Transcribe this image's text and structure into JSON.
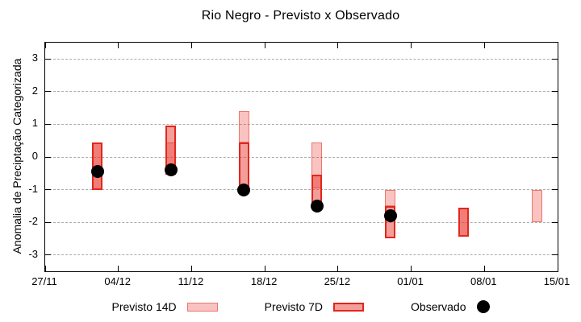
{
  "chart_data": {
    "type": "bar",
    "subtype": "forecast-range-bars-with-observed-points",
    "title": "Rio Negro - Previsto x Observado",
    "xlabel": "",
    "ylabel": "Anomalia de Preciptação Categorizada",
    "x_tick_labels": [
      "27/11",
      "04/12",
      "11/12",
      "18/12",
      "25/12",
      "01/01",
      "08/01",
      "15/01"
    ],
    "x_tick_days": [
      0,
      7,
      14,
      21,
      28,
      35,
      42,
      49
    ],
    "x_range_days": [
      0,
      49
    ],
    "y_ticks": [
      3,
      2,
      1,
      0,
      -1,
      -2,
      -3
    ],
    "ylim": [
      -3.5,
      3.5
    ],
    "grid": "horizontal dashed gridlines at integer y values",
    "legend_position": "bottom-center outside plot",
    "legend": [
      {
        "label": "Previsto 14D",
        "type": "box"
      },
      {
        "label": "Previsto 7D",
        "type": "box"
      },
      {
        "label": "Observado",
        "type": "dot"
      }
    ],
    "series": [
      {
        "date": "02/12",
        "day": 5,
        "previsto_14d": [
          0.45,
          -1.0
        ],
        "previsto_7d": [
          0.45,
          -1.0
        ],
        "observado": -0.45
      },
      {
        "date": "09/12",
        "day": 12,
        "previsto_14d": [
          0.45,
          -0.55
        ],
        "previsto_7d": [
          0.95,
          -0.55
        ],
        "observado": -0.4
      },
      {
        "date": "16/12",
        "day": 19,
        "previsto_14d": [
          1.4,
          0.45
        ],
        "previsto_7d": [
          0.45,
          -1.05
        ],
        "observado": -1.0
      },
      {
        "date": "23/12",
        "day": 26,
        "previsto_14d": [
          0.45,
          -0.95
        ],
        "previsto_7d": [
          -0.55,
          -1.55
        ],
        "observado": -1.5
      },
      {
        "date": "30/12",
        "day": 33,
        "previsto_14d": [
          -1.0,
          -1.5
        ],
        "previsto_7d": [
          -1.5,
          -2.5
        ],
        "observado": -1.8
      },
      {
        "date": "06/01",
        "day": 40,
        "previsto_14d": [
          -1.55,
          -2.45
        ],
        "previsto_7d": [
          -1.55,
          -2.45
        ],
        "observado": null
      },
      {
        "date": "13/01",
        "day": 47,
        "previsto_14d": [
          -1.0,
          -2.0
        ],
        "previsto_7d": null,
        "observado": null
      }
    ]
  },
  "colors": {
    "bar_base_rgb": "230,40,30",
    "previsto_14d_fill_alpha": 0.28,
    "previsto_7d_fill_alpha": 0.45,
    "previsto_14d_border": "rgba(226,48,35,0.52)",
    "previsto_7d_border": "#e2261c",
    "observado_dot": "#000000",
    "gridline": "#ababab",
    "frame": "#000000",
    "background": "#ffffff"
  }
}
